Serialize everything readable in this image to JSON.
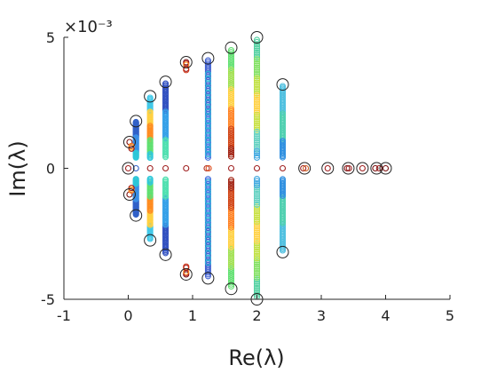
{
  "chart_data": {
    "type": "scatter",
    "xlabel": "Re(λ)",
    "ylabel": "Im(λ)",
    "xlim": [
      -1,
      5
    ],
    "ylim": [
      -5,
      5
    ],
    "y_scale_factor": "×10⁻³",
    "xticks": [
      -1,
      0,
      1,
      2,
      3,
      4,
      5
    ],
    "xtick_labels": [
      "-1",
      "0",
      "1",
      "2",
      "3",
      "4",
      "5"
    ],
    "yticks": [
      -5,
      0,
      5
    ],
    "ytick_labels": [
      "-5",
      "0",
      "5"
    ],
    "grid": false,
    "legend": "none",
    "colormap": "jet",
    "marker": "hollow circle",
    "vertical_lines": [
      {
        "re": 0.12,
        "im_max": 1.8,
        "colors": [
          "#3060c8",
          "#3a8ee6",
          "#2cc7d8"
        ]
      },
      {
        "re": 0.34,
        "im_max": 2.75,
        "colors": [
          "#40c8e8",
          "#ffd040",
          "#ff8c20",
          "#60e070",
          "#30c8d8"
        ]
      },
      {
        "re": 0.58,
        "im_max": 3.3,
        "colors": [
          "#3050c0",
          "#35a0e8",
          "#50e0b0"
        ]
      },
      {
        "re": 1.24,
        "im_max": 4.2,
        "colors": [
          "#4060d0",
          "#4070e0"
        ]
      },
      {
        "re": 1.6,
        "im_max": 4.6,
        "colors": [
          "#60e070",
          "#a0e050",
          "#ffd040",
          "#ff8020",
          "#d04010",
          "#a02010"
        ]
      },
      {
        "re": 2.0,
        "im_max": 5.0,
        "colors": [
          "#50d0a0",
          "#80e060",
          "#c0e040",
          "#ffd040",
          "#c8e040",
          "#60d0c0",
          "#40a8e0"
        ]
      },
      {
        "re": 2.4,
        "im_max": 3.2,
        "colors": [
          "#50c0e0",
          "#50d0b0",
          "#3090e0"
        ]
      }
    ],
    "sparse_columns": [
      {
        "re": 1.24,
        "im_max": 3.6,
        "color": "#30b8d8"
      },
      {
        "re": 1.24,
        "im_min": 3.0,
        "color": "#60d0c0"
      }
    ],
    "isolated_points": [
      {
        "re": 0.02,
        "im": 1.0,
        "colors": [
          "#7a1010"
        ]
      },
      {
        "re": 0.05,
        "im": 0.85,
        "colors": [
          "#ff7020",
          "#ffb030",
          "#a01818"
        ]
      },
      {
        "re": 0.02,
        "im": -1.0,
        "colors": [
          "#7a1010"
        ]
      },
      {
        "re": 0.05,
        "im": -0.85,
        "colors": [
          "#ff7020",
          "#ffb030",
          "#a01818"
        ]
      },
      {
        "re": 0.9,
        "im": 4.05,
        "colors": [
          "#7a1010",
          "#b01818",
          "#ff9020"
        ]
      },
      {
        "re": 0.9,
        "im": 3.8,
        "colors": [
          "#a01818",
          "#d03010"
        ]
      },
      {
        "re": 0.9,
        "im": -4.05,
        "colors": [
          "#7a1010",
          "#b01818",
          "#ff9020"
        ]
      },
      {
        "re": 0.9,
        "im": -3.8,
        "colors": [
          "#a01818",
          "#d03010"
        ]
      }
    ],
    "real_axis_points": [
      {
        "re": 0.0,
        "color": "#a02020"
      },
      {
        "re": 0.12,
        "color": "#3060c8"
      },
      {
        "re": 0.34,
        "color": "#a02020"
      },
      {
        "re": 0.58,
        "color": "#a02020"
      },
      {
        "re": 0.9,
        "color": "#a02020"
      },
      {
        "re": 1.22,
        "color": "#b03020"
      },
      {
        "re": 1.25,
        "color": "#e05020"
      },
      {
        "re": 1.6,
        "color": "#a02020"
      },
      {
        "re": 2.0,
        "color": "#a02020"
      },
      {
        "re": 2.4,
        "color": "#a02020"
      },
      {
        "re": 2.72,
        "color": "#a02020"
      },
      {
        "re": 2.76,
        "color": "#d06020"
      },
      {
        "re": 3.1,
        "color": "#a02020"
      },
      {
        "re": 3.4,
        "color": "#7a1010"
      },
      {
        "re": 3.43,
        "color": "#a02020"
      },
      {
        "re": 3.64,
        "color": "#a02020"
      },
      {
        "re": 3.84,
        "color": "#7a1010"
      },
      {
        "re": 3.9,
        "color": "#a02020"
      },
      {
        "re": 4.0,
        "color": "#7a1010"
      }
    ],
    "black_ring_markers": [
      {
        "re": 0.0,
        "im": 0
      },
      {
        "re": 0.02,
        "im": 1.0
      },
      {
        "re": 0.02,
        "im": -1.0
      },
      {
        "re": 0.12,
        "im": 1.8
      },
      {
        "re": 0.12,
        "im": -1.8
      },
      {
        "re": 0.34,
        "im": 2.75
      },
      {
        "re": 0.34,
        "im": -2.75
      },
      {
        "re": 0.58,
        "im": 3.3
      },
      {
        "re": 0.58,
        "im": -3.3
      },
      {
        "re": 0.9,
        "im": 4.05
      },
      {
        "re": 0.9,
        "im": -4.05
      },
      {
        "re": 1.24,
        "im": 4.2
      },
      {
        "re": 1.24,
        "im": -4.2
      },
      {
        "re": 1.6,
        "im": 4.6
      },
      {
        "re": 1.6,
        "im": -4.6
      },
      {
        "re": 2.0,
        "im": 5.0
      },
      {
        "re": 2.0,
        "im": -5.0
      },
      {
        "re": 2.4,
        "im": 3.2
      },
      {
        "re": 2.4,
        "im": -3.2
      },
      {
        "re": 2.74,
        "im": 0
      },
      {
        "re": 3.1,
        "im": 0
      },
      {
        "re": 3.42,
        "im": 0
      },
      {
        "re": 3.64,
        "im": 0
      },
      {
        "re": 3.86,
        "im": 0
      },
      {
        "re": 4.0,
        "im": 0
      }
    ],
    "colors": {
      "axis": "#262626",
      "ring": "#222222",
      "background": "#ffffff"
    }
  }
}
